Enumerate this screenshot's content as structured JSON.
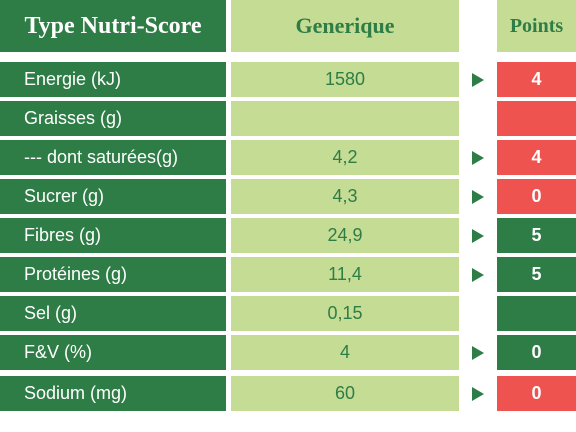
{
  "header": {
    "label_col": "Type Nutri-Score",
    "value_col": "Generique",
    "points_col": "Points"
  },
  "colors": {
    "dark_green": "#2e7d46",
    "light_green": "#c5dc94",
    "red": "#ef5350",
    "white": "#ffffff"
  },
  "rows": [
    {
      "label": "Energie (kJ)",
      "value": "1580",
      "arrow": true,
      "points": "4",
      "points_color": "red"
    },
    {
      "label": "Graisses (g)",
      "value": "",
      "arrow": false,
      "points": "",
      "points_color": "red"
    },
    {
      "label": "--- dont saturées(g)",
      "value": "4,2",
      "arrow": true,
      "points": "4",
      "points_color": "red"
    },
    {
      "label": "Sucrer (g)",
      "value": "4,3",
      "arrow": true,
      "points": "0",
      "points_color": "red"
    },
    {
      "label": "Fibres (g)",
      "value": "24,9",
      "arrow": true,
      "points": "5",
      "points_color": "green"
    },
    {
      "label": "Protéines (g)",
      "value": "11,4",
      "arrow": true,
      "points": "5",
      "points_color": "green"
    },
    {
      "label": "Sel (g)",
      "value": "0,15",
      "arrow": false,
      "points": "",
      "points_color": "green"
    },
    {
      "label": "F&V (%)",
      "value": "4",
      "arrow": true,
      "points": "0",
      "points_color": "green"
    },
    {
      "label": "Sodium (mg)",
      "value": "60",
      "arrow": true,
      "points": "0",
      "points_color": "red"
    }
  ]
}
